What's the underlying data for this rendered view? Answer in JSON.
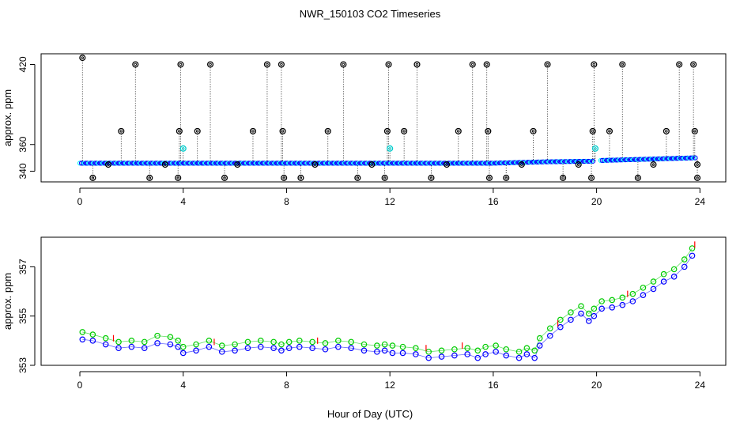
{
  "title": "NWR_150103  CO2 Timeseries",
  "xlabel": "Hour of Day (UTC)",
  "chart_data": [
    {
      "type": "scatter",
      "ylabel": "approx. ppm",
      "xlim": [
        -1.5,
        25
      ],
      "ylim": [
        332,
        428
      ],
      "xticks": [
        0,
        4,
        8,
        12,
        16,
        20,
        24
      ],
      "yticks": [
        340,
        360,
        420
      ],
      "grid": false,
      "baseline": [
        {
          "x": 0,
          "y": 346
        },
        {
          "x": 8,
          "y": 346
        },
        {
          "x": 16,
          "y": 346
        },
        {
          "x": 18,
          "y": 347
        },
        {
          "x": 19.9,
          "y": 347.5
        },
        {
          "x": 20.1,
          "y": 348
        },
        {
          "x": 22,
          "y": 349
        },
        {
          "x": 23.8,
          "y": 350
        }
      ],
      "high_points": [
        {
          "x": 0.1,
          "y": 425
        },
        {
          "x": 1.6,
          "y": 370
        },
        {
          "x": 2.15,
          "y": 420
        },
        {
          "x": 3.85,
          "y": 370
        },
        {
          "x": 3.9,
          "y": 420
        },
        {
          "x": 4.55,
          "y": 370
        },
        {
          "x": 5.05,
          "y": 420
        },
        {
          "x": 6.7,
          "y": 370
        },
        {
          "x": 7.25,
          "y": 420
        },
        {
          "x": 7.8,
          "y": 420
        },
        {
          "x": 7.85,
          "y": 370
        },
        {
          "x": 9.6,
          "y": 370
        },
        {
          "x": 10.2,
          "y": 420
        },
        {
          "x": 11.9,
          "y": 370
        },
        {
          "x": 11.95,
          "y": 420
        },
        {
          "x": 12.55,
          "y": 370
        },
        {
          "x": 13.05,
          "y": 420
        },
        {
          "x": 14.65,
          "y": 370
        },
        {
          "x": 15.2,
          "y": 420
        },
        {
          "x": 15.75,
          "y": 420
        },
        {
          "x": 15.8,
          "y": 370
        },
        {
          "x": 17.55,
          "y": 370
        },
        {
          "x": 18.1,
          "y": 420
        },
        {
          "x": 19.85,
          "y": 370
        },
        {
          "x": 19.9,
          "y": 420
        },
        {
          "x": 20.5,
          "y": 370
        },
        {
          "x": 21.0,
          "y": 420
        },
        {
          "x": 22.7,
          "y": 370
        },
        {
          "x": 23.2,
          "y": 420
        },
        {
          "x": 23.75,
          "y": 420
        },
        {
          "x": 23.8,
          "y": 370
        }
      ],
      "low_points": [
        {
          "x": 0.5,
          "y": 335
        },
        {
          "x": 2.7,
          "y": 335
        },
        {
          "x": 3.8,
          "y": 335
        },
        {
          "x": 5.6,
          "y": 335
        },
        {
          "x": 7.9,
          "y": 335
        },
        {
          "x": 8.55,
          "y": 335
        },
        {
          "x": 10.75,
          "y": 335
        },
        {
          "x": 11.8,
          "y": 335
        },
        {
          "x": 13.6,
          "y": 335
        },
        {
          "x": 15.85,
          "y": 335
        },
        {
          "x": 16.5,
          "y": 335
        },
        {
          "x": 18.7,
          "y": 335
        },
        {
          "x": 19.8,
          "y": 335
        },
        {
          "x": 21.6,
          "y": 335
        },
        {
          "x": 23.9,
          "y": 335
        }
      ],
      "mid_low_points": [
        {
          "x": 1.1,
          "y": 345
        },
        {
          "x": 3.3,
          "y": 345
        },
        {
          "x": 6.1,
          "y": 345
        },
        {
          "x": 9.1,
          "y": 345
        },
        {
          "x": 11.3,
          "y": 345
        },
        {
          "x": 14.2,
          "y": 345
        },
        {
          "x": 17.1,
          "y": 345
        },
        {
          "x": 19.3,
          "y": 345
        },
        {
          "x": 22.2,
          "y": 345
        },
        {
          "x": 23.9,
          "y": 345
        }
      ],
      "cyan_points": [
        {
          "x": 4.0,
          "y": 357
        },
        {
          "x": 12.0,
          "y": 357
        },
        {
          "x": 19.95,
          "y": 357
        }
      ],
      "colors": {
        "high": "#000000",
        "line": "#000000",
        "baseline_a": "#0000ff",
        "baseline_b": "#00ffff",
        "cyan": "#00cccc"
      }
    },
    {
      "type": "scatter",
      "ylabel": "approx. ppm",
      "xlim": [
        -1.5,
        25
      ],
      "ylim": [
        353,
        358.2
      ],
      "xticks": [
        0,
        4,
        8,
        12,
        16,
        20,
        24
      ],
      "yticks": [
        353,
        355,
        357
      ],
      "grid": false,
      "series": [
        {
          "color": "#0000ff",
          "points": [
            {
              "x": 0.1,
              "y": 354.05
            },
            {
              "x": 0.5,
              "y": 354.0
            },
            {
              "x": 1.0,
              "y": 353.85
            },
            {
              "x": 1.5,
              "y": 353.7
            },
            {
              "x": 2.0,
              "y": 353.75
            },
            {
              "x": 2.5,
              "y": 353.7
            },
            {
              "x": 3.0,
              "y": 353.9
            },
            {
              "x": 3.5,
              "y": 353.85
            },
            {
              "x": 3.8,
              "y": 353.75
            },
            {
              "x": 4.0,
              "y": 353.5
            },
            {
              "x": 4.5,
              "y": 353.6
            },
            {
              "x": 5.0,
              "y": 353.75
            },
            {
              "x": 5.5,
              "y": 353.55
            },
            {
              "x": 6.0,
              "y": 353.6
            },
            {
              "x": 6.5,
              "y": 353.7
            },
            {
              "x": 7.0,
              "y": 353.75
            },
            {
              "x": 7.5,
              "y": 353.7
            },
            {
              "x": 7.8,
              "y": 353.6
            },
            {
              "x": 8.1,
              "y": 353.7
            },
            {
              "x": 8.5,
              "y": 353.75
            },
            {
              "x": 9.0,
              "y": 353.7
            },
            {
              "x": 9.5,
              "y": 353.65
            },
            {
              "x": 10.0,
              "y": 353.75
            },
            {
              "x": 10.5,
              "y": 353.7
            },
            {
              "x": 11.0,
              "y": 353.6
            },
            {
              "x": 11.5,
              "y": 353.55
            },
            {
              "x": 11.8,
              "y": 353.6
            },
            {
              "x": 12.1,
              "y": 353.5
            },
            {
              "x": 12.5,
              "y": 353.5
            },
            {
              "x": 13.0,
              "y": 353.45
            },
            {
              "x": 13.5,
              "y": 353.3
            },
            {
              "x": 14.0,
              "y": 353.35
            },
            {
              "x": 14.5,
              "y": 353.4
            },
            {
              "x": 15.0,
              "y": 353.45
            },
            {
              "x": 15.4,
              "y": 353.3
            },
            {
              "x": 15.7,
              "y": 353.45
            },
            {
              "x": 16.1,
              "y": 353.55
            },
            {
              "x": 16.5,
              "y": 353.4
            },
            {
              "x": 17.0,
              "y": 353.3
            },
            {
              "x": 17.3,
              "y": 353.45
            },
            {
              "x": 17.6,
              "y": 353.3
            },
            {
              "x": 17.8,
              "y": 353.8
            },
            {
              "x": 18.2,
              "y": 354.2
            },
            {
              "x": 18.6,
              "y": 354.55
            },
            {
              "x": 19.0,
              "y": 354.85
            },
            {
              "x": 19.4,
              "y": 355.1
            },
            {
              "x": 19.7,
              "y": 354.8
            },
            {
              "x": 19.9,
              "y": 355.0
            },
            {
              "x": 20.2,
              "y": 355.3
            },
            {
              "x": 20.6,
              "y": 355.35
            },
            {
              "x": 21.0,
              "y": 355.45
            },
            {
              "x": 21.4,
              "y": 355.6
            },
            {
              "x": 21.8,
              "y": 355.85
            },
            {
              "x": 22.2,
              "y": 356.1
            },
            {
              "x": 22.6,
              "y": 356.4
            },
            {
              "x": 23.0,
              "y": 356.6
            },
            {
              "x": 23.4,
              "y": 357.0
            },
            {
              "x": 23.7,
              "y": 357.45
            }
          ]
        },
        {
          "color": "#00cc00",
          "points": [
            {
              "x": 0.1,
              "y": 354.35
            },
            {
              "x": 0.5,
              "y": 354.25
            },
            {
              "x": 1.0,
              "y": 354.1
            },
            {
              "x": 1.5,
              "y": 353.95
            },
            {
              "x": 2.0,
              "y": 354.0
            },
            {
              "x": 2.5,
              "y": 353.95
            },
            {
              "x": 3.0,
              "y": 354.2
            },
            {
              "x": 3.5,
              "y": 354.15
            },
            {
              "x": 3.8,
              "y": 354.0
            },
            {
              "x": 4.0,
              "y": 353.75
            },
            {
              "x": 4.5,
              "y": 353.85
            },
            {
              "x": 5.0,
              "y": 354.0
            },
            {
              "x": 5.5,
              "y": 353.8
            },
            {
              "x": 6.0,
              "y": 353.85
            },
            {
              "x": 6.5,
              "y": 353.95
            },
            {
              "x": 7.0,
              "y": 354.0
            },
            {
              "x": 7.5,
              "y": 353.95
            },
            {
              "x": 7.8,
              "y": 353.85
            },
            {
              "x": 8.1,
              "y": 353.95
            },
            {
              "x": 8.5,
              "y": 354.0
            },
            {
              "x": 9.0,
              "y": 353.95
            },
            {
              "x": 9.5,
              "y": 353.9
            },
            {
              "x": 10.0,
              "y": 354.0
            },
            {
              "x": 10.5,
              "y": 353.95
            },
            {
              "x": 11.0,
              "y": 353.85
            },
            {
              "x": 11.5,
              "y": 353.8
            },
            {
              "x": 11.8,
              "y": 353.85
            },
            {
              "x": 12.1,
              "y": 353.8
            },
            {
              "x": 12.5,
              "y": 353.75
            },
            {
              "x": 13.0,
              "y": 353.7
            },
            {
              "x": 13.5,
              "y": 353.55
            },
            {
              "x": 14.0,
              "y": 353.6
            },
            {
              "x": 14.5,
              "y": 353.65
            },
            {
              "x": 15.0,
              "y": 353.7
            },
            {
              "x": 15.4,
              "y": 353.6
            },
            {
              "x": 15.7,
              "y": 353.75
            },
            {
              "x": 16.1,
              "y": 353.8
            },
            {
              "x": 16.5,
              "y": 353.65
            },
            {
              "x": 17.0,
              "y": 353.55
            },
            {
              "x": 17.3,
              "y": 353.7
            },
            {
              "x": 17.6,
              "y": 353.6
            },
            {
              "x": 17.8,
              "y": 354.1
            },
            {
              "x": 18.2,
              "y": 354.5
            },
            {
              "x": 18.6,
              "y": 354.85
            },
            {
              "x": 19.0,
              "y": 355.15
            },
            {
              "x": 19.4,
              "y": 355.4
            },
            {
              "x": 19.7,
              "y": 355.1
            },
            {
              "x": 19.9,
              "y": 355.3
            },
            {
              "x": 20.2,
              "y": 355.6
            },
            {
              "x": 20.6,
              "y": 355.65
            },
            {
              "x": 21.0,
              "y": 355.75
            },
            {
              "x": 21.4,
              "y": 355.9
            },
            {
              "x": 21.8,
              "y": 356.15
            },
            {
              "x": 22.2,
              "y": 356.4
            },
            {
              "x": 22.6,
              "y": 356.7
            },
            {
              "x": 23.0,
              "y": 356.9
            },
            {
              "x": 23.4,
              "y": 357.3
            },
            {
              "x": 23.7,
              "y": 357.75
            }
          ]
        },
        {
          "color": "#ff0000",
          "points": [
            {
              "x": 1.3,
              "y": 354.1
            },
            {
              "x": 5.2,
              "y": 353.95
            },
            {
              "x": 9.2,
              "y": 354.0
            },
            {
              "x": 13.4,
              "y": 353.7
            },
            {
              "x": 14.8,
              "y": 353.8
            },
            {
              "x": 18.5,
              "y": 354.7
            },
            {
              "x": 21.2,
              "y": 355.9
            },
            {
              "x": 23.8,
              "y": 357.9
            }
          ]
        }
      ]
    }
  ]
}
